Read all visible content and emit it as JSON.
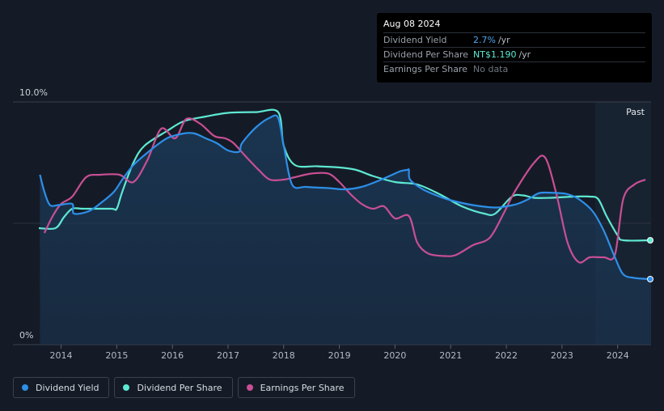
{
  "tooltip": {
    "date": "Aug 08 2024",
    "rows": [
      {
        "label": "Dividend Yield",
        "value": "2.7%",
        "unit": "/yr"
      },
      {
        "label": "Dividend Per Share",
        "value": "NT$1.190",
        "unit": "/yr"
      },
      {
        "label": "Earnings Per Share",
        "value": "No data",
        "unit": ""
      }
    ]
  },
  "legend": [
    {
      "label": "Dividend Yield",
      "color": "#2d8fe8"
    },
    {
      "label": "Dividend Per Share",
      "color": "#5ee8d2"
    },
    {
      "label": "Earnings Per Share",
      "color": "#c94f95"
    }
  ],
  "chart_data": {
    "type": "line",
    "y_axis_labels": [
      "10.0%",
      "0%"
    ],
    "ylim": [
      0,
      10
    ],
    "xlim": [
      2013.6,
      2024.6
    ],
    "x_ticks": [
      "2014",
      "2015",
      "2016",
      "2017",
      "2018",
      "2019",
      "2020",
      "2021",
      "2022",
      "2023",
      "2024"
    ],
    "past_label": "Past",
    "past_start": 2023.6,
    "series": [
      {
        "name": "Dividend Yield",
        "color": "#2d8fe8",
        "fill": true,
        "points": [
          [
            2013.62,
            7.0
          ],
          [
            2013.7,
            6.3
          ],
          [
            2013.8,
            5.75
          ],
          [
            2013.95,
            5.75
          ],
          [
            2014.2,
            5.8
          ],
          [
            2014.23,
            5.4
          ],
          [
            2014.5,
            5.5
          ],
          [
            2014.75,
            5.9
          ],
          [
            2014.95,
            6.3
          ],
          [
            2015.1,
            6.8
          ],
          [
            2015.3,
            7.4
          ],
          [
            2015.6,
            8.0
          ],
          [
            2015.9,
            8.5
          ],
          [
            2016.2,
            8.7
          ],
          [
            2016.4,
            8.7
          ],
          [
            2016.6,
            8.5
          ],
          [
            2016.8,
            8.3
          ],
          [
            2017.0,
            8.0
          ],
          [
            2017.2,
            7.95
          ],
          [
            2017.25,
            8.3
          ],
          [
            2017.5,
            8.95
          ],
          [
            2017.75,
            9.35
          ],
          [
            2017.9,
            9.35
          ],
          [
            2018.0,
            8.2
          ],
          [
            2018.15,
            6.6
          ],
          [
            2018.4,
            6.5
          ],
          [
            2018.8,
            6.45
          ],
          [
            2019.1,
            6.4
          ],
          [
            2019.4,
            6.5
          ],
          [
            2019.7,
            6.75
          ],
          [
            2019.9,
            6.95
          ],
          [
            2020.1,
            7.15
          ],
          [
            2020.22,
            7.2
          ],
          [
            2020.25,
            7.2
          ],
          [
            2020.27,
            6.8
          ],
          [
            2020.5,
            6.4
          ],
          [
            2020.8,
            6.1
          ],
          [
            2021.0,
            5.95
          ],
          [
            2021.4,
            5.75
          ],
          [
            2021.8,
            5.65
          ],
          [
            2022.0,
            5.7
          ],
          [
            2022.2,
            5.8
          ],
          [
            2022.4,
            6.0
          ],
          [
            2022.6,
            6.25
          ],
          [
            2022.9,
            6.25
          ],
          [
            2023.1,
            6.2
          ],
          [
            2023.3,
            6.0
          ],
          [
            2023.55,
            5.5
          ],
          [
            2023.75,
            4.7
          ],
          [
            2023.95,
            3.6
          ],
          [
            2024.1,
            2.9
          ],
          [
            2024.3,
            2.75
          ],
          [
            2024.6,
            2.7
          ]
        ]
      },
      {
        "name": "Dividend Per Share",
        "color": "#5ee8d2",
        "fill": false,
        "points": [
          [
            2013.6,
            4.8
          ],
          [
            2013.9,
            4.8
          ],
          [
            2014.05,
            5.25
          ],
          [
            2014.2,
            5.6
          ],
          [
            2014.4,
            5.6
          ],
          [
            2014.9,
            5.6
          ],
          [
            2015.0,
            5.6
          ],
          [
            2015.1,
            6.3
          ],
          [
            2015.3,
            7.5
          ],
          [
            2015.5,
            8.2
          ],
          [
            2015.9,
            8.8
          ],
          [
            2016.2,
            9.2
          ],
          [
            2016.6,
            9.4
          ],
          [
            2017.0,
            9.55
          ],
          [
            2017.5,
            9.58
          ],
          [
            2017.9,
            9.58
          ],
          [
            2018.0,
            8.2
          ],
          [
            2018.2,
            7.4
          ],
          [
            2018.6,
            7.35
          ],
          [
            2019.0,
            7.3
          ],
          [
            2019.3,
            7.2
          ],
          [
            2019.6,
            6.95
          ],
          [
            2020.0,
            6.7
          ],
          [
            2020.4,
            6.6
          ],
          [
            2020.8,
            6.2
          ],
          [
            2021.2,
            5.7
          ],
          [
            2021.6,
            5.4
          ],
          [
            2021.8,
            5.4
          ],
          [
            2022.1,
            6.1
          ],
          [
            2022.3,
            6.15
          ],
          [
            2022.5,
            6.05
          ],
          [
            2022.8,
            6.05
          ],
          [
            2023.2,
            6.1
          ],
          [
            2023.5,
            6.1
          ],
          [
            2023.65,
            6.0
          ],
          [
            2023.8,
            5.3
          ],
          [
            2024.0,
            4.5
          ],
          [
            2024.1,
            4.3
          ],
          [
            2024.6,
            4.3
          ]
        ]
      },
      {
        "name": "Earnings Per Share",
        "color": "#c94f95",
        "fill": false,
        "points": [
          [
            2013.7,
            4.6
          ],
          [
            2013.85,
            5.3
          ],
          [
            2014.0,
            5.8
          ],
          [
            2014.2,
            6.1
          ],
          [
            2014.45,
            6.9
          ],
          [
            2014.7,
            7.0
          ],
          [
            2015.05,
            7.0
          ],
          [
            2015.3,
            6.7
          ],
          [
            2015.55,
            7.6
          ],
          [
            2015.8,
            8.9
          ],
          [
            2016.05,
            8.5
          ],
          [
            2016.25,
            9.3
          ],
          [
            2016.5,
            9.1
          ],
          [
            2016.75,
            8.6
          ],
          [
            2016.95,
            8.5
          ],
          [
            2017.1,
            8.3
          ],
          [
            2017.3,
            7.8
          ],
          [
            2017.55,
            7.2
          ],
          [
            2017.75,
            6.8
          ],
          [
            2018.0,
            6.8
          ],
          [
            2018.2,
            6.9
          ],
          [
            2018.5,
            7.05
          ],
          [
            2018.8,
            7.05
          ],
          [
            2019.0,
            6.7
          ],
          [
            2019.2,
            6.2
          ],
          [
            2019.4,
            5.8
          ],
          [
            2019.6,
            5.6
          ],
          [
            2019.8,
            5.7
          ],
          [
            2020.0,
            5.2
          ],
          [
            2020.25,
            5.3
          ],
          [
            2020.4,
            4.2
          ],
          [
            2020.6,
            3.75
          ],
          [
            2020.9,
            3.65
          ],
          [
            2021.1,
            3.7
          ],
          [
            2021.4,
            4.1
          ],
          [
            2021.7,
            4.4
          ],
          [
            2021.95,
            5.4
          ],
          [
            2022.15,
            6.3
          ],
          [
            2022.5,
            7.5
          ],
          [
            2022.7,
            7.7
          ],
          [
            2022.9,
            6.2
          ],
          [
            2023.1,
            4.2
          ],
          [
            2023.3,
            3.4
          ],
          [
            2023.5,
            3.6
          ],
          [
            2023.75,
            3.6
          ],
          [
            2023.95,
            3.7
          ],
          [
            2024.1,
            6.0
          ],
          [
            2024.3,
            6.6
          ],
          [
            2024.5,
            6.8
          ]
        ]
      }
    ],
    "end_markers": [
      {
        "series": "Dividend Yield",
        "value": 2.7
      },
      {
        "series": "Dividend Per Share",
        "value": 4.3
      }
    ]
  }
}
